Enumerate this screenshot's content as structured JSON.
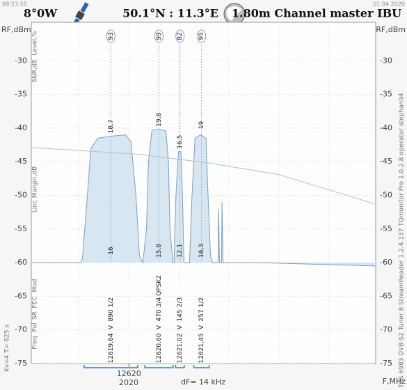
{
  "header": {
    "time": "09:23:55",
    "date": "01.04.2020",
    "satellite": "8°0W",
    "location": "50.1°N : 11.3°E",
    "dish": "1.80m Channel master IBU"
  },
  "chart_data": {
    "type": "line",
    "y_label": "RF,dBm",
    "x_label": "F,MHz",
    "x_sublabel": "2020",
    "span_label": "dF= 14 kHz",
    "settings_label": "Kv=4  T= 625 s",
    "device_label": "TBS 6983 DVB-S2 Tuner 8   StreamReader 1.2.4.137   TQmonitor Pro 1.0.2.8   operator stephan94",
    "row_labels": {
      "level": "Level,%",
      "snr": "SNR,dB",
      "margin": "Linc Margin,dB",
      "mod": "Mod",
      "fec": "FEC",
      "sr": "SR",
      "pol": "Pol",
      "freq": "Freq"
    },
    "x": [
      12618.06,
      12619.03,
      12619.07,
      12619.17,
      12619.24,
      12619.38,
      12619.65,
      12619.93,
      12620.04,
      12620.14,
      12620.21,
      12620.28,
      12620.35,
      12620.39,
      12620.46,
      12620.6,
      12620.74,
      12620.79,
      12620.82,
      12620.88,
      12620.9,
      12620.94,
      12620.99,
      12621.04,
      12621.07,
      12621.1,
      12621.21,
      12621.26,
      12621.32,
      12621.43,
      12621.54,
      12621.58,
      12621.63,
      12621.67,
      12621.78,
      12621.79,
      12621.81,
      12621.85,
      12621.86,
      12621.88,
      12622.57,
      12624.93
    ],
    "series": [
      {
        "color": "#7d9fbe",
        "values": [
          -60,
          -60,
          -59.5,
          -50,
          -43,
          -41.5,
          -41.2,
          -41,
          -42,
          -50,
          -59,
          -60,
          -55,
          -45,
          -40.3,
          -40.2,
          -40.4,
          -45,
          -55,
          -60,
          -60,
          -50,
          -43.5,
          -43.5,
          -50,
          -60,
          -60,
          -50,
          -41.5,
          -41,
          -41.5,
          -50,
          -59,
          -60,
          -60,
          -52,
          -60,
          -60,
          -51,
          -60,
          -60,
          -60.5
        ]
      },
      {
        "color": "#a9c4dc",
        "x": [
          12618.06,
          12620.21,
          12621.6,
          12622.99,
          12624.93
        ],
        "values": [
          -42.9,
          -43.9,
          -45.2,
          -46.9,
          -51.3
        ]
      }
    ],
    "xlim": [
      12618.05,
      12624.93
    ],
    "ylim": [
      -75,
      -25
    ],
    "yticks": [
      -30,
      -35,
      -40,
      -45,
      -50,
      -55,
      -60,
      -65,
      -70,
      -75
    ],
    "xticks": [
      12620
    ],
    "xgrid": [
      12619,
      12620,
      12621,
      12622,
      12623,
      12624
    ],
    "grid": true,
    "carriers": [
      {
        "freq": {
          "value": 12619.64,
          "label": "12619,64"
        },
        "level": 93,
        "snr": "18,7",
        "margin": "16",
        "mod": "",
        "fec": "1/2",
        "sr": 890,
        "pol": "V"
      },
      {
        "freq": {
          "value": 12620.6,
          "label": "12620,60"
        },
        "level": 99,
        "snr": "19,8",
        "margin": "15,8",
        "mod": "QPSK2",
        "fec": "3/4",
        "sr": 470,
        "pol": "V"
      },
      {
        "freq": {
          "value": 12621.02,
          "label": "12621,02"
        },
        "level": 82,
        "snr": "16,5",
        "margin": "12,1",
        "mod": "",
        "fec": "2/3",
        "sr": 145,
        "pol": "V"
      },
      {
        "freq": {
          "value": 12621.45,
          "label": "12621,45"
        },
        "level": 95,
        "snr": "19",
        "margin": "16,3",
        "mod": "",
        "fec": "1/2",
        "sr": 257,
        "pol": "V"
      }
    ]
  }
}
